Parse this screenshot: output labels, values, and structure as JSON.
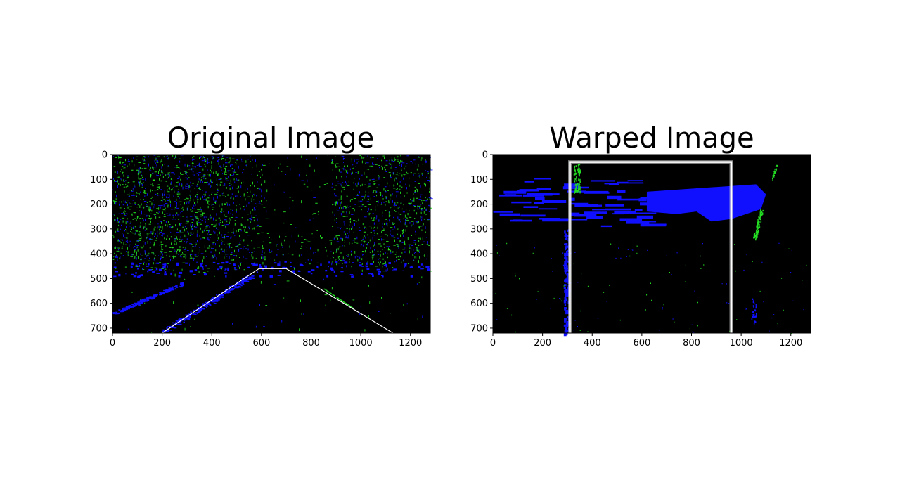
{
  "figure": {
    "panels": [
      {
        "title": "Original Image",
        "image_extent": {
          "width": 1280,
          "height": 720
        },
        "x_ticks": [
          0,
          200,
          400,
          600,
          800,
          1000,
          1200
        ],
        "y_ticks": [
          0,
          100,
          200,
          300,
          400,
          500,
          600,
          700
        ],
        "x_tick_labels": [
          "0",
          "200",
          "400",
          "600",
          "800",
          "1000",
          "1200"
        ],
        "y_tick_labels": [
          "0",
          "100",
          "200",
          "300",
          "400",
          "500",
          "600",
          "700"
        ],
        "roi_polygon": [
          [
            200,
            720
          ],
          [
            590,
            460
          ],
          [
            700,
            460
          ],
          [
            1130,
            720
          ]
        ],
        "colors": {
          "background": "#000000",
          "edge_a": "#22dd22",
          "edge_b": "#1010ff",
          "roi": "#ffffff"
        }
      },
      {
        "title": "Warped Image",
        "image_extent": {
          "width": 1280,
          "height": 720
        },
        "x_ticks": [
          0,
          200,
          400,
          600,
          800,
          1000,
          1200
        ],
        "y_ticks": [
          0,
          100,
          200,
          300,
          400,
          500,
          600,
          700
        ],
        "x_tick_labels": [
          "0",
          "200",
          "400",
          "600",
          "800",
          "1000",
          "1200"
        ],
        "y_tick_labels": [
          "0",
          "100",
          "200",
          "300",
          "400",
          "500",
          "600",
          "700"
        ],
        "roi_polygon": [
          [
            310,
            720
          ],
          [
            310,
            30
          ],
          [
            960,
            30
          ],
          [
            960,
            720
          ]
        ],
        "colors": {
          "background": "#000000",
          "edge_a": "#22dd22",
          "edge_b": "#1010ff",
          "roi": "#ffffff"
        }
      }
    ]
  }
}
